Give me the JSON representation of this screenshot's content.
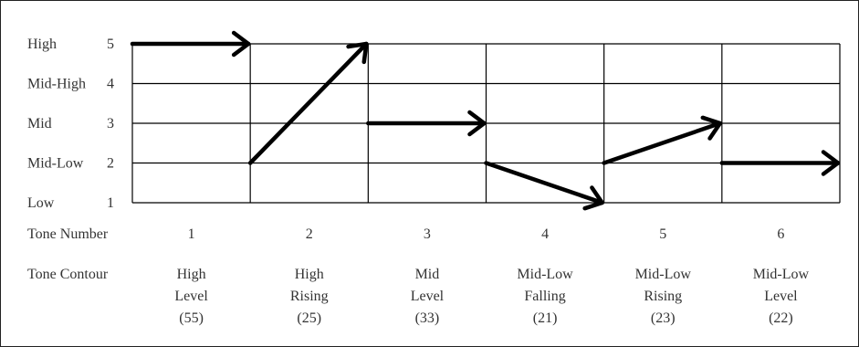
{
  "levels": [
    {
      "name": "High",
      "num": "5"
    },
    {
      "name": "Mid-High",
      "num": "4"
    },
    {
      "name": "Mid",
      "num": "3"
    },
    {
      "name": "Mid-Low",
      "num": "2"
    },
    {
      "name": "Low",
      "num": "1"
    }
  ],
  "row_labels": {
    "tone_number": "Tone Number",
    "tone_contour": "Tone Contour"
  },
  "tones": [
    {
      "number": "1",
      "contour": [
        "High",
        "Level",
        "(55)"
      ],
      "start": 5,
      "end": 5
    },
    {
      "number": "2",
      "contour": [
        "High",
        "Rising",
        "(25)"
      ],
      "start": 2,
      "end": 5
    },
    {
      "number": "3",
      "contour": [
        "Mid",
        "Level",
        "(33)"
      ],
      "start": 3,
      "end": 3
    },
    {
      "number": "4",
      "contour": [
        "Mid-Low",
        "Falling",
        "(21)"
      ],
      "start": 2,
      "end": 1
    },
    {
      "number": "5",
      "contour": [
        "Mid-Low",
        "Rising",
        "(23)"
      ],
      "start": 2,
      "end": 3
    },
    {
      "number": "6",
      "contour": [
        "Mid-Low",
        "Level",
        "(22)"
      ],
      "start": 2,
      "end": 2
    }
  ]
}
